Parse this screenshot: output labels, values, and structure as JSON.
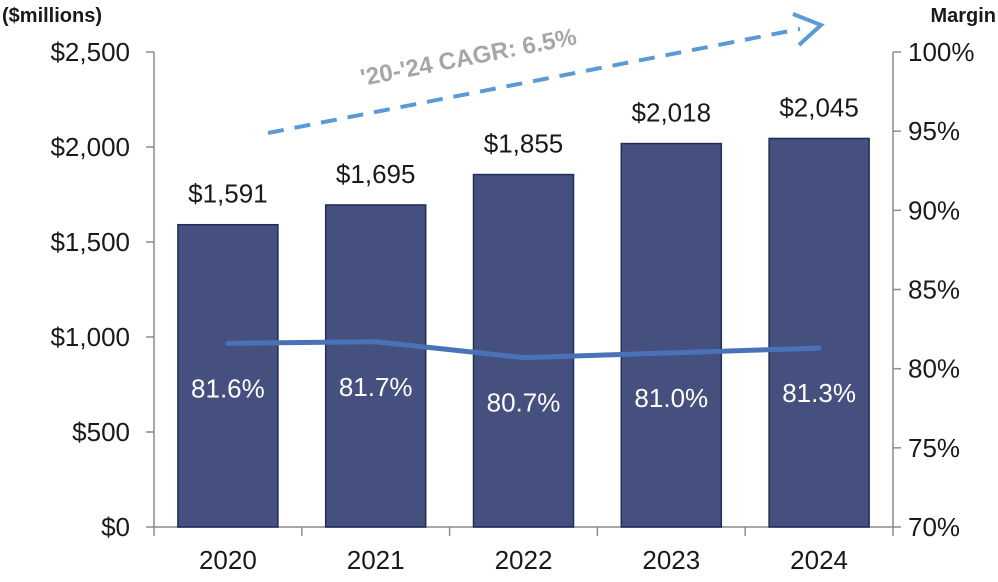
{
  "chart_data": {
    "type": "bar",
    "categories": [
      "2020",
      "2021",
      "2022",
      "2023",
      "2024"
    ],
    "series": [
      {
        "values": [
          1591,
          1695,
          1855,
          2018,
          2045
        ]
      },
      {
        "values": [
          81.6,
          81.7,
          80.7,
          81.0,
          81.3
        ]
      }
    ],
    "bar_labels": [
      "$1,591",
      "$1,695",
      "$1,855",
      "$2,018",
      "$2,045"
    ],
    "line_labels": [
      "81.6%",
      "81.7%",
      "80.7%",
      "81.0%",
      "81.3%"
    ],
    "y_left": {
      "title": "($millions)",
      "ylim": [
        0,
        2500
      ],
      "ticks": [
        "$0",
        "$500",
        "$1,000",
        "$1,500",
        "$2,000",
        "$2,500"
      ]
    },
    "y_right": {
      "title": "Margin",
      "ylim": [
        70,
        100
      ],
      "ticks": [
        "70%",
        "75%",
        "80%",
        "85%",
        "90%",
        "95%",
        "100%"
      ]
    },
    "annotation": "'20-'24 CAGR: 6.5%",
    "grid": false,
    "colors": {
      "bar": "#45507f",
      "bar_edge": "#1f2c5c",
      "line": "#4a72b8",
      "arrow": "#5b9bd5",
      "annotation_text": "#a6a6a6",
      "axis": "#8c8c8c"
    }
  }
}
